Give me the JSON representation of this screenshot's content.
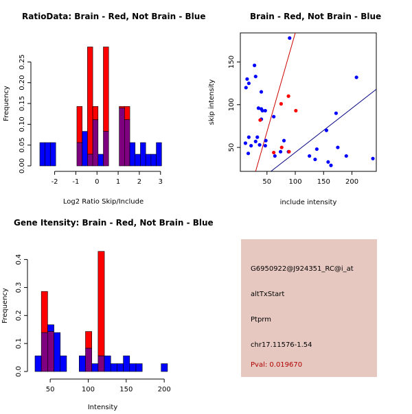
{
  "colors": {
    "brain": "#ff0000",
    "not_brain": "#0000ff",
    "overlap": "#7f007f",
    "panel": "#e6c8c0",
    "pval": "#b00000"
  },
  "chart_data": [
    {
      "id": "ratio",
      "type": "bar",
      "title": "RatioData: Brain - Red, Not Brain - Blue",
      "xlabel": "Log2 Ratio Skip/Include",
      "ylabel": "Frequency",
      "xlim": [
        -2.7,
        3.3
      ],
      "ylim": [
        0,
        0.3
      ],
      "xticks": [
        -2,
        -1,
        0,
        1,
        2,
        3
      ],
      "yticks": [
        0.0,
        0.05,
        0.1,
        0.15,
        0.2,
        0.25
      ],
      "ytick_labels": [
        "0.00",
        "0.05",
        "0.10",
        "0.15",
        "0.20",
        "0.25"
      ],
      "bin_width": 0.25,
      "bins": [
        -2.7,
        -2.45,
        -2.2,
        -1.95,
        -1.7,
        -1.45,
        -1.2,
        -0.95,
        -0.7,
        -0.45,
        -0.2,
        0.05,
        0.3,
        0.55,
        0.8,
        1.05,
        1.3,
        1.55,
        1.8,
        2.05,
        2.3,
        2.55,
        2.8,
        3.05
      ],
      "series": [
        {
          "name": "Not Brain",
          "values": [
            0.056,
            0.056,
            0.056,
            0,
            0,
            0,
            0,
            0.056,
            0.083,
            0.028,
            0.111,
            0.028,
            0.083,
            0,
            0,
            0.139,
            0.111,
            0.056,
            0.028,
            0.056,
            0.028,
            0.028,
            0.056,
            0
          ]
        },
        {
          "name": "Brain",
          "values": [
            0,
            0,
            0,
            0,
            0,
            0,
            0,
            0.143,
            0,
            0.286,
            0.143,
            0,
            0.286,
            0,
            0,
            0.143,
            0.143,
            0,
            0,
            0,
            0,
            0,
            0,
            0
          ]
        }
      ]
    },
    {
      "id": "scatter",
      "type": "scatter",
      "title": "Brain - Red, Not Brain - Blue",
      "xlabel": "include intensity",
      "ylabel": "skip intensity",
      "xlim": [
        3,
        243
      ],
      "ylim": [
        22,
        184
      ],
      "xticks": [
        50,
        100,
        150,
        200
      ],
      "yticks": [
        50,
        100,
        150
      ],
      "lines": [
        {
          "name": "Brain fit",
          "color": "#cc0000",
          "x": [
            30,
            100
          ],
          "y": [
            22,
            184
          ]
        },
        {
          "name": "Not Brain fit",
          "color": "#000080",
          "x": [
            57,
            243
          ],
          "y": [
            22,
            118
          ]
        }
      ],
      "series": [
        {
          "name": "Not Brain",
          "points": [
            [
              15,
              130
            ],
            [
              13,
              120
            ],
            [
              18,
              125
            ],
            [
              28,
              146
            ],
            [
              30,
              133
            ],
            [
              90,
              178
            ],
            [
              35,
              96
            ],
            [
              40,
              95
            ],
            [
              42,
              93
            ],
            [
              47,
              93
            ],
            [
              40,
              115
            ],
            [
              12,
              55
            ],
            [
              18,
              62
            ],
            [
              22,
              52
            ],
            [
              30,
              57
            ],
            [
              33,
              62
            ],
            [
              40,
              83
            ],
            [
              37,
              53
            ],
            [
              47,
              52
            ],
            [
              48,
              58
            ],
            [
              62,
              86
            ],
            [
              80,
              58
            ],
            [
              64,
              40
            ],
            [
              74,
              45
            ],
            [
              88,
              45
            ],
            [
              125,
              40
            ],
            [
              135,
              36
            ],
            [
              138,
              48
            ],
            [
              155,
              70
            ],
            [
              158,
              33
            ],
            [
              163,
              29
            ],
            [
              172,
              90
            ],
            [
              175,
              50
            ],
            [
              190,
              40
            ],
            [
              208,
              132
            ],
            [
              237,
              37
            ],
            [
              17,
              43
            ]
          ]
        },
        {
          "name": "Brain",
          "points": [
            [
              38,
              82
            ],
            [
              75,
              101
            ],
            [
              88,
              110
            ],
            [
              101,
              93
            ],
            [
              76,
              50
            ],
            [
              62,
              44
            ],
            [
              89,
              45
            ]
          ]
        }
      ]
    },
    {
      "id": "intensity",
      "type": "bar",
      "title": "Gene Itensity: Brain - Red, Not Brain - Blue",
      "xlabel": "Intensity",
      "ylabel": "Frequency",
      "xlim": [
        30,
        208
      ],
      "ylim": [
        0,
        0.47
      ],
      "xticks": [
        50,
        100,
        150,
        200
      ],
      "yticks": [
        0.0,
        0.1,
        0.2,
        0.3,
        0.4
      ],
      "ytick_labels": [
        "0.0",
        "0.1",
        "0.2",
        "0.3",
        "0.4"
      ],
      "bin_width": 8.3,
      "bins": [
        30,
        38.3,
        46.6,
        54.9,
        63.2,
        71.5,
        79.8,
        88.1,
        96.4,
        104.7,
        113,
        121.3,
        129.6,
        137.9,
        146.2,
        154.5,
        162.8,
        171.1,
        179.4,
        187.7,
        196,
        204.3
      ],
      "series": [
        {
          "name": "Not Brain",
          "values": [
            0.056,
            0.139,
            0.167,
            0.139,
            0.056,
            0,
            0,
            0.056,
            0.083,
            0.028,
            0.056,
            0.056,
            0.028,
            0.028,
            0.056,
            0.028,
            0.028,
            0,
            0,
            0,
            0.028,
            0
          ]
        },
        {
          "name": "Brain",
          "values": [
            0,
            0.286,
            0.143,
            0,
            0,
            0,
            0,
            0,
            0.143,
            0,
            0.429,
            0,
            0,
            0,
            0,
            0,
            0,
            0,
            0,
            0,
            0,
            0
          ]
        }
      ]
    }
  ],
  "info_panel": {
    "probe": "G6950922@J924351_RC@i_at",
    "event": "altTxStart",
    "gene": "Ptprm",
    "location": "chr17.11576-1.54",
    "pval": "Pval: 0.019670"
  }
}
